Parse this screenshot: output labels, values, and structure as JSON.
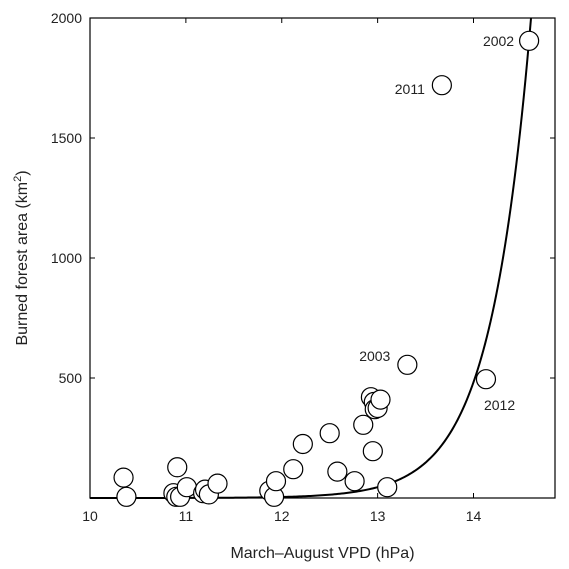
{
  "chart_data": {
    "type": "scatter",
    "title": "",
    "xlabel": "March–August VPD (hPa)",
    "ylabel_main": "Burned forest area (km",
    "ylabel_sup": "2",
    "ylabel_end": ")",
    "xlim": [
      10,
      14.85
    ],
    "ylim": [
      0,
      2000
    ],
    "xticks": [
      10,
      11,
      12,
      13,
      14
    ],
    "yticks": [
      500,
      1000,
      1500,
      2000
    ],
    "grid": false,
    "series": [
      {
        "kind": "points",
        "x": [
          10.35,
          10.38,
          10.87,
          10.9,
          10.91,
          10.94,
          11.01,
          11.18,
          11.2,
          11.24,
          11.33,
          11.87,
          11.92,
          11.94,
          12.12,
          12.22,
          12.5,
          12.58,
          12.76,
          12.85,
          12.93,
          12.95,
          12.96,
          12.97,
          13.0,
          13.03,
          13.1,
          13.31,
          13.67,
          14.13,
          14.58
        ],
        "y": [
          85,
          5,
          20,
          5,
          128,
          5,
          45,
          20,
          35,
          15,
          60,
          30,
          5,
          70,
          120,
          225,
          270,
          110,
          70,
          305,
          420,
          195,
          400,
          370,
          375,
          410,
          45,
          555,
          1720,
          495,
          1905
        ]
      },
      {
        "kind": "fit-curve",
        "a": 1908.0,
        "x0": 14.58,
        "b": 2.37,
        "c": 0
      }
    ],
    "annotations": [
      {
        "text": "2002",
        "x": 14.58,
        "y": 1905
      },
      {
        "text": "2011",
        "x": 13.67,
        "y": 1720
      },
      {
        "text": "2003",
        "x": 13.31,
        "y": 555
      },
      {
        "text": "2012",
        "x": 14.13,
        "y": 495
      }
    ]
  }
}
